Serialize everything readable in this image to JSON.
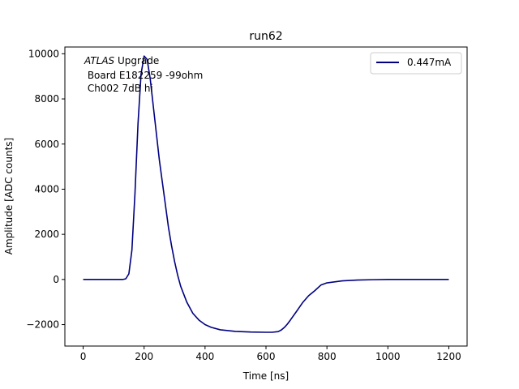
{
  "chart_data": {
    "type": "line",
    "title": "run62",
    "xlabel": "Time [ns]",
    "ylabel": "Amplitude [ADC counts]",
    "xlim": [
      -60,
      1260
    ],
    "ylim": [
      -2950,
      10300
    ],
    "xticks": [
      0,
      200,
      400,
      600,
      800,
      1000,
      1200
    ],
    "yticks": [
      -2000,
      0,
      2000,
      4000,
      6000,
      8000,
      10000
    ],
    "xtick_labels": [
      "0",
      "200",
      "400",
      "600",
      "800",
      "1000",
      "1200"
    ],
    "ytick_labels": [
      "−2000",
      "0",
      "2000",
      "4000",
      "6000",
      "8000",
      "10000"
    ],
    "grid": false,
    "legend_position": "top-right",
    "annotation": {
      "italic": "ATLAS",
      "line1_rest": " Upgrade",
      "line2": " Board E182259 -99ohm",
      "line3": " Ch002 7dB hi"
    },
    "series": [
      {
        "name": "0.447mA",
        "color": "#000080",
        "x": [
          0,
          50,
          100,
          130,
          140,
          150,
          160,
          170,
          180,
          190,
          200,
          210,
          220,
          230,
          240,
          250,
          260,
          270,
          280,
          290,
          300,
          310,
          320,
          340,
          360,
          380,
          400,
          420,
          450,
          500,
          550,
          600,
          620,
          640,
          650,
          660,
          670,
          680,
          700,
          720,
          740,
          760,
          780,
          800,
          850,
          900,
          950,
          1000,
          1100,
          1200
        ],
        "y": [
          0,
          0,
          0,
          0,
          30,
          250,
          1300,
          3800,
          6900,
          9100,
          9900,
          9750,
          8900,
          7700,
          6500,
          5300,
          4300,
          3300,
          2300,
          1500,
          800,
          200,
          -300,
          -1000,
          -1500,
          -1800,
          -2000,
          -2120,
          -2230,
          -2300,
          -2330,
          -2340,
          -2340,
          -2310,
          -2240,
          -2130,
          -1980,
          -1800,
          -1420,
          -1030,
          -720,
          -500,
          -250,
          -150,
          -60,
          -25,
          -10,
          0,
          0,
          0
        ]
      }
    ]
  }
}
